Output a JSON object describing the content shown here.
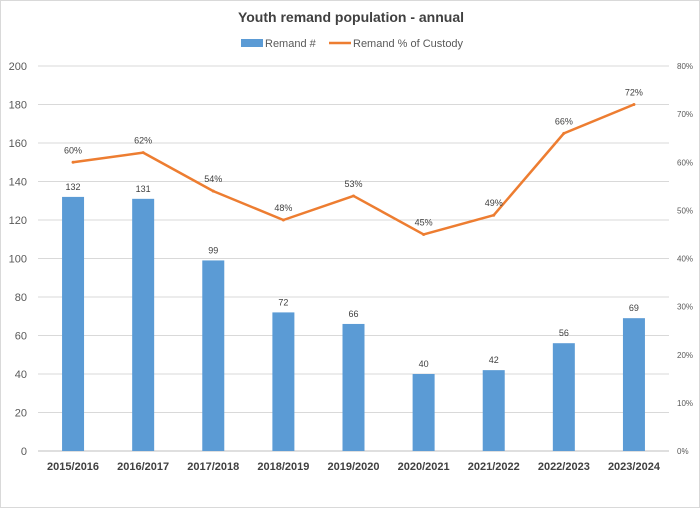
{
  "chart_data": {
    "type": "bar+line",
    "title": "Youth remand population - annual",
    "categories": [
      "2015/2016",
      "2016/2017",
      "2017/2018",
      "2018/2019",
      "2019/2020",
      "2020/2021",
      "2021/2022",
      "2022/2023",
      "2023/2024"
    ],
    "series": [
      {
        "name": "Remand #",
        "type": "bar",
        "axis": "left",
        "color": "#5b9bd5",
        "values": [
          132,
          131,
          99,
          72,
          66,
          40,
          42,
          56,
          69
        ],
        "labels": [
          "132",
          "131",
          "99",
          "72",
          "66",
          "40",
          "42",
          "56",
          "69"
        ]
      },
      {
        "name": "Remand % of Custody",
        "type": "line",
        "axis": "right",
        "color": "#ed7d31",
        "values": [
          60,
          62,
          54,
          48,
          53,
          45,
          49,
          66,
          72
        ],
        "labels": [
          "60%",
          "62%",
          "54%",
          "48%",
          "53%",
          "45%",
          "49%",
          "66%",
          "72%"
        ]
      }
    ],
    "y_left": {
      "range": [
        0,
        200
      ],
      "ticks": [
        "0",
        "20",
        "40",
        "60",
        "80",
        "100",
        "120",
        "140",
        "160",
        "180",
        "200"
      ]
    },
    "y_right": {
      "range": [
        0,
        80
      ],
      "ticks": [
        "0%",
        "10%",
        "20%",
        "30%",
        "40%",
        "50%",
        "60%",
        "70%",
        "80%"
      ]
    },
    "grid": true,
    "legend": "top-center"
  }
}
